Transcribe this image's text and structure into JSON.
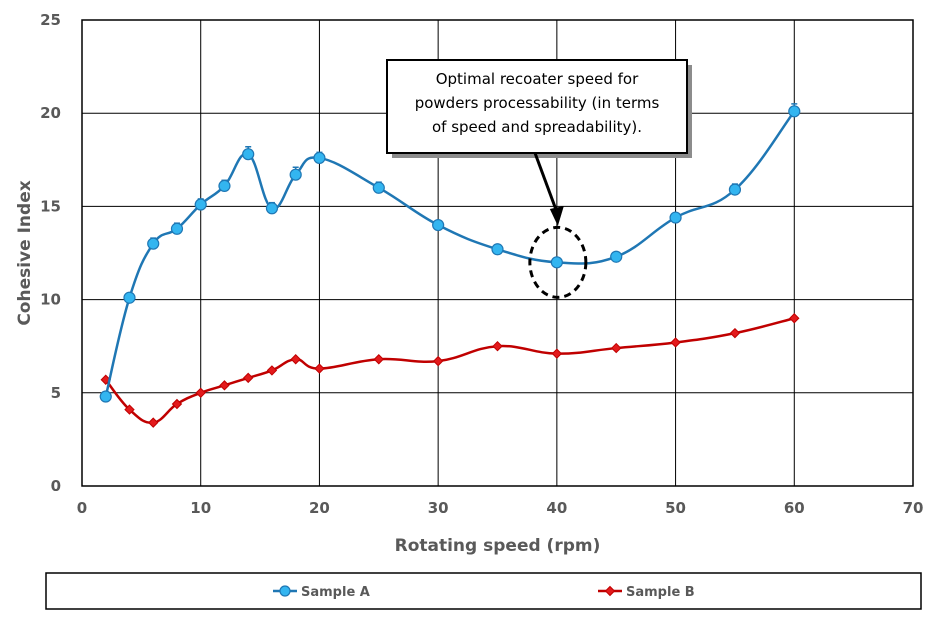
{
  "chart_data": {
    "type": "line",
    "xlabel": "Rotating speed (rpm)",
    "ylabel": "Cohesive Index",
    "xlim": [
      0,
      70
    ],
    "ylim": [
      0,
      25
    ],
    "x_ticks": [
      "0",
      "10",
      "20",
      "30",
      "40",
      "50",
      "60",
      "70"
    ],
    "y_ticks": [
      "0",
      "5",
      "10",
      "15",
      "20",
      "25"
    ],
    "grid": true,
    "legend_position": "bottom",
    "series": [
      {
        "name": "Sample A",
        "color": "#1F77B4",
        "marker": "circle",
        "points": [
          {
            "x": 2,
            "y": 4.8,
            "err": 0.2
          },
          {
            "x": 4,
            "y": 10.1,
            "err": 0.2
          },
          {
            "x": 6,
            "y": 13.0,
            "err": 0.3
          },
          {
            "x": 8,
            "y": 13.8,
            "err": 0.3
          },
          {
            "x": 10,
            "y": 15.1,
            "err": 0.3
          },
          {
            "x": 12,
            "y": 16.1,
            "err": 0.3
          },
          {
            "x": 14,
            "y": 17.8,
            "err": 0.4
          },
          {
            "x": 16,
            "y": 14.9,
            "err": 0.3
          },
          {
            "x": 18,
            "y": 16.7,
            "err": 0.4
          },
          {
            "x": 20,
            "y": 17.6,
            "err": 0.3
          },
          {
            "x": 25,
            "y": 16.0,
            "err": 0.3
          },
          {
            "x": 30,
            "y": 14.0,
            "err": 0.2
          },
          {
            "x": 35,
            "y": 12.7,
            "err": 0.2
          },
          {
            "x": 40,
            "y": 12.0,
            "err": 0.2
          },
          {
            "x": 45,
            "y": 12.3,
            "err": 0.2
          },
          {
            "x": 50,
            "y": 14.4,
            "err": 0.2
          },
          {
            "x": 55,
            "y": 15.9,
            "err": 0.3
          },
          {
            "x": 60,
            "y": 20.1,
            "err": 0.4
          }
        ]
      },
      {
        "name": "Sample B",
        "color": "#C00000",
        "marker": "diamond",
        "points": [
          {
            "x": 2,
            "y": 5.7
          },
          {
            "x": 4,
            "y": 4.1
          },
          {
            "x": 6,
            "y": 3.4
          },
          {
            "x": 8,
            "y": 4.4
          },
          {
            "x": 10,
            "y": 5.0
          },
          {
            "x": 12,
            "y": 5.4
          },
          {
            "x": 14,
            "y": 5.8
          },
          {
            "x": 16,
            "y": 6.2
          },
          {
            "x": 18,
            "y": 6.8
          },
          {
            "x": 20,
            "y": 6.3
          },
          {
            "x": 25,
            "y": 6.8
          },
          {
            "x": 30,
            "y": 6.7
          },
          {
            "x": 35,
            "y": 7.5
          },
          {
            "x": 40,
            "y": 7.1
          },
          {
            "x": 45,
            "y": 7.4
          },
          {
            "x": 50,
            "y": 7.7
          },
          {
            "x": 55,
            "y": 8.2
          },
          {
            "x": 60,
            "y": 9.0
          }
        ]
      }
    ],
    "annotation": {
      "lines": [
        "Optimal recoater speed for",
        "powders processability (in terms",
        "of speed and spreadability)."
      ],
      "target_x": 40,
      "target_y": 12.0
    }
  }
}
